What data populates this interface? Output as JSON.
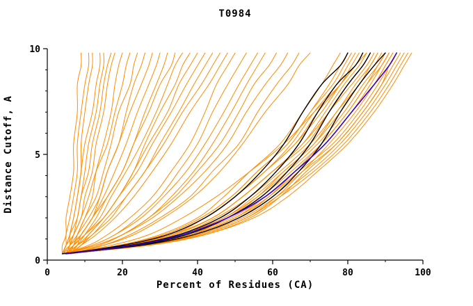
{
  "chart_data": {
    "type": "line",
    "title": "T0984",
    "xlabel": "Percent of Residues (CA)",
    "ylabel": "Distance Cutoff, A",
    "xlim": [
      0,
      100
    ],
    "ylim": [
      0,
      10
    ],
    "x_ticks": [
      0,
      20,
      40,
      60,
      80,
      100
    ],
    "x_minor_step": 10,
    "y_ticks": [
      0,
      5,
      10
    ],
    "y_minor_step": 1,
    "grid": false,
    "legend": "none",
    "colors": {
      "orange": "#FF8C00",
      "black": "#000000",
      "blue": "#3300CC"
    },
    "y_stations": [
      0.3,
      0.7,
      1.2,
      2,
      3,
      4.2,
      5.5,
      7,
      8.3,
      9.2,
      9.8
    ],
    "curves": {
      "orange": [
        [
          4,
          4,
          5,
          5,
          6,
          7,
          7,
          8,
          8,
          9,
          9
        ],
        [
          4,
          5,
          5,
          6,
          7,
          8,
          8,
          9,
          10,
          11,
          11
        ],
        [
          5,
          6,
          6,
          7,
          8,
          9,
          9,
          10,
          11,
          12,
          12
        ],
        [
          4,
          5,
          6,
          7,
          8,
          9,
          10,
          12,
          13,
          14,
          14
        ],
        [
          5,
          6,
          7,
          8,
          9,
          10,
          11,
          13,
          14,
          15,
          15
        ],
        [
          4,
          5,
          6,
          8,
          9,
          11,
          12,
          14,
          15,
          16,
          17
        ],
        [
          5,
          6,
          7,
          9,
          10,
          12,
          13,
          15,
          16,
          17,
          18
        ],
        [
          6,
          7,
          8,
          10,
          12,
          13,
          15,
          17,
          18,
          19,
          20
        ],
        [
          4,
          5,
          7,
          9,
          11,
          13,
          16,
          18,
          20,
          21,
          22
        ],
        [
          5,
          7,
          8,
          10,
          13,
          15,
          17,
          19,
          22,
          23,
          24
        ],
        [
          6,
          8,
          9,
          12,
          14,
          16,
          19,
          21,
          23,
          25,
          26
        ],
        [
          4,
          6,
          8,
          11,
          14,
          16,
          19,
          22,
          25,
          27,
          28
        ],
        [
          5,
          7,
          9,
          12,
          15,
          18,
          21,
          24,
          27,
          29,
          30
        ],
        [
          6,
          8,
          10,
          13,
          16,
          20,
          23,
          26,
          29,
          31,
          32
        ],
        [
          4,
          6,
          9,
          12,
          16,
          20,
          23,
          27,
          30,
          33,
          34
        ],
        [
          5,
          7,
          10,
          14,
          17,
          21,
          25,
          29,
          32,
          34,
          36
        ],
        [
          6,
          9,
          11,
          15,
          19,
          23,
          26,
          30,
          34,
          36,
          38
        ],
        [
          5,
          8,
          11,
          15,
          19,
          23,
          27,
          32,
          35,
          38,
          40
        ],
        [
          4,
          7,
          10,
          15,
          19,
          24,
          28,
          33,
          37,
          40,
          42
        ],
        [
          6,
          9,
          12,
          17,
          21,
          26,
          30,
          35,
          39,
          42,
          44
        ],
        [
          5,
          8,
          12,
          16,
          21,
          26,
          31,
          36,
          41,
          44,
          46
        ],
        [
          6,
          9,
          13,
          18,
          23,
          28,
          33,
          38,
          43,
          46,
          48
        ],
        [
          4,
          11,
          16,
          22,
          28,
          33,
          38,
          42,
          45,
          48,
          50
        ],
        [
          5,
          12,
          18,
          24,
          30,
          35,
          40,
          44,
          48,
          51,
          53
        ],
        [
          4,
          12,
          18,
          25,
          31,
          37,
          42,
          47,
          51,
          54,
          56
        ],
        [
          6,
          14,
          20,
          27,
          33,
          39,
          44,
          49,
          53,
          56,
          58
        ],
        [
          5,
          13,
          20,
          27,
          34,
          40,
          46,
          51,
          55,
          59,
          61
        ],
        [
          4,
          13,
          20,
          28,
          35,
          42,
          48,
          53,
          58,
          62,
          64
        ],
        [
          6,
          15,
          22,
          30,
          38,
          44,
          51,
          56,
          61,
          65,
          67
        ],
        [
          5,
          15,
          23,
          31,
          39,
          46,
          52,
          58,
          64,
          67,
          70
        ],
        [
          4,
          19,
          30,
          40,
          47,
          54,
          62,
          68,
          73,
          76,
          78
        ],
        [
          5,
          20,
          31,
          41,
          49,
          56,
          64,
          70,
          75,
          78,
          80
        ],
        [
          4,
          19,
          31,
          41,
          49,
          56,
          64,
          70,
          76,
          79,
          81
        ],
        [
          6,
          21,
          33,
          42,
          50,
          58,
          65,
          71,
          77,
          80,
          82
        ],
        [
          5,
          21,
          32,
          42,
          50,
          58,
          66,
          72,
          78,
          81,
          83
        ],
        [
          4,
          20,
          32,
          42,
          50,
          58,
          66,
          73,
          78,
          82,
          84
        ],
        [
          6,
          22,
          34,
          44,
          52,
          60,
          68,
          74,
          79,
          83,
          85
        ],
        [
          5,
          21,
          33,
          44,
          52,
          60,
          68,
          75,
          80,
          84,
          86
        ],
        [
          4,
          21,
          33,
          44,
          52,
          60,
          69,
          75,
          81,
          85,
          87
        ],
        [
          6,
          22,
          35,
          45,
          54,
          62,
          70,
          77,
          82,
          86,
          88
        ],
        [
          5,
          24,
          38,
          48,
          56,
          63,
          71,
          77,
          83,
          86,
          88
        ],
        [
          4,
          22,
          35,
          47,
          55,
          63,
          71,
          78,
          83,
          87,
          89
        ],
        [
          6,
          23,
          36,
          47,
          56,
          64,
          72,
          79,
          84,
          88,
          90
        ],
        [
          5,
          26,
          40,
          51,
          59,
          66,
          73,
          80,
          85,
          88,
          90
        ],
        [
          4,
          22,
          36,
          48,
          57,
          65,
          73,
          80,
          85,
          89,
          91
        ],
        [
          6,
          24,
          38,
          50,
          58,
          66,
          74,
          81,
          86,
          89,
          91
        ],
        [
          5,
          23,
          37,
          49,
          58,
          66,
          74,
          81,
          87,
          90,
          92
        ],
        [
          4,
          26,
          41,
          53,
          61,
          68,
          75,
          82,
          87,
          90,
          92
        ],
        [
          6,
          24,
          38,
          50,
          59,
          67,
          76,
          83,
          88,
          91,
          93
        ],
        [
          5,
          27,
          42,
          54,
          62,
          69,
          77,
          84,
          89,
          91,
          93
        ],
        [
          4,
          24,
          39,
          51,
          60,
          68,
          77,
          84,
          89,
          92,
          94
        ],
        [
          6,
          25,
          40,
          52,
          61,
          70,
          78,
          85,
          90,
          93,
          95
        ],
        [
          5,
          26,
          41,
          53,
          62,
          71,
          79,
          86,
          91,
          94,
          96
        ],
        [
          4,
          27,
          42,
          55,
          64,
          72,
          80,
          87,
          92,
          95,
          97
        ],
        [
          5,
          17,
          27,
          36,
          45,
          54,
          63,
          71,
          78,
          82,
          85
        ]
      ],
      "black": [
        [
          5,
          20,
          32,
          42,
          50,
          57,
          63,
          68,
          73,
          78,
          80
        ],
        [
          4,
          22,
          35,
          46,
          54,
          61,
          67,
          72,
          77,
          82,
          84
        ],
        [
          5,
          24,
          37,
          48,
          57,
          64,
          70,
          75,
          80,
          84,
          86
        ],
        [
          4,
          25,
          39,
          51,
          60,
          67,
          73,
          78,
          83,
          87,
          90
        ]
      ],
      "blue": [
        [
          5,
          23,
          36,
          48,
          58,
          66,
          74,
          81,
          87,
          91,
          93
        ]
      ]
    }
  }
}
